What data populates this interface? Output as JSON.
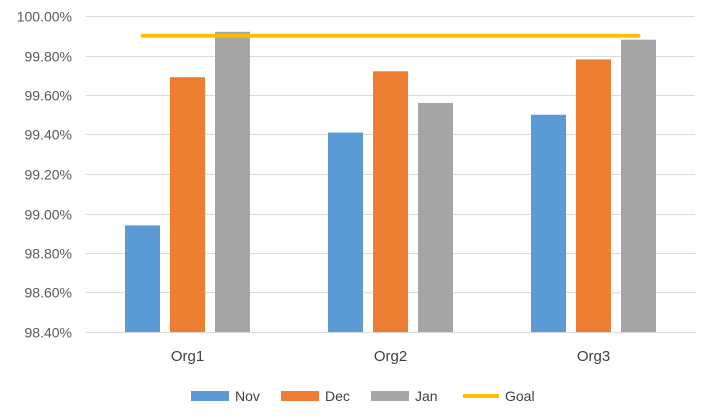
{
  "chart_data": {
    "type": "bar",
    "categories": [
      "Org1",
      "Org2",
      "Org3"
    ],
    "series": [
      {
        "name": "Nov",
        "values": [
          98.94,
          99.41,
          99.5
        ],
        "color": "#5B9BD5"
      },
      {
        "name": "Dec",
        "values": [
          99.69,
          99.72,
          99.78
        ],
        "color": "#ED7D31"
      },
      {
        "name": "Jan",
        "values": [
          99.92,
          99.56,
          99.88
        ],
        "color": "#A5A5A5"
      }
    ],
    "goal": {
      "name": "Goal",
      "value": 99.9,
      "color": "#FFC000",
      "type": "line"
    },
    "y_ticks": [
      "98.40%",
      "98.60%",
      "98.80%",
      "99.00%",
      "99.20%",
      "99.40%",
      "99.60%",
      "99.80%",
      "100.00%"
    ],
    "ylim": [
      98.4,
      100.0
    ],
    "y_unit": "%",
    "grid": true,
    "legend_position": "bottom",
    "title": "",
    "xlabel": "",
    "ylabel": ""
  }
}
